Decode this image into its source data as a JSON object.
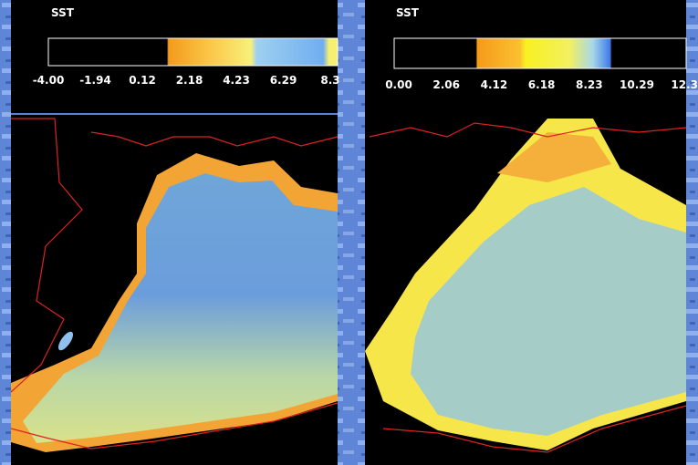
{
  "panels": [
    {
      "title": "SST",
      "colorbar_ticks": [
        "-4.00",
        "-1.94",
        "0.12",
        "2.18",
        "4.23",
        "6.29",
        "8.3"
      ]
    },
    {
      "title": "SST",
      "colorbar_ticks": [
        "0.00",
        "2.06",
        "4.12",
        "6.18",
        "8.23",
        "10.29",
        "12.3"
      ]
    }
  ]
}
